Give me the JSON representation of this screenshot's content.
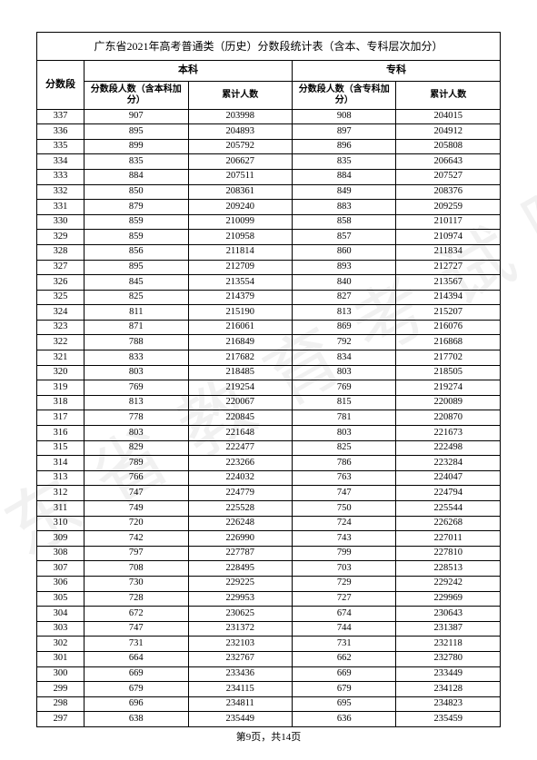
{
  "watermark": "广东省教育考试院",
  "title": "广东省2021年高考普通类（历史）分数段统计表（含本、专科层次加分）",
  "headers": {
    "score": "分数段",
    "undergrad": "本科",
    "vocational": "专科",
    "ug_count": "分数段人数（含本科加分）",
    "ug_cum": "累计人数",
    "voc_count": "分数段人数（含专科加分）",
    "voc_cum": "累计人数"
  },
  "footer": "第9页，共14页",
  "rows": [
    {
      "s": 337,
      "a": 907,
      "b": 203998,
      "c": 908,
      "d": 204015
    },
    {
      "s": 336,
      "a": 895,
      "b": 204893,
      "c": 897,
      "d": 204912
    },
    {
      "s": 335,
      "a": 899,
      "b": 205792,
      "c": 896,
      "d": 205808
    },
    {
      "s": 334,
      "a": 835,
      "b": 206627,
      "c": 835,
      "d": 206643
    },
    {
      "s": 333,
      "a": 884,
      "b": 207511,
      "c": 884,
      "d": 207527
    },
    {
      "s": 332,
      "a": 850,
      "b": 208361,
      "c": 849,
      "d": 208376
    },
    {
      "s": 331,
      "a": 879,
      "b": 209240,
      "c": 883,
      "d": 209259
    },
    {
      "s": 330,
      "a": 859,
      "b": 210099,
      "c": 858,
      "d": 210117
    },
    {
      "s": 329,
      "a": 859,
      "b": 210958,
      "c": 857,
      "d": 210974
    },
    {
      "s": 328,
      "a": 856,
      "b": 211814,
      "c": 860,
      "d": 211834
    },
    {
      "s": 327,
      "a": 895,
      "b": 212709,
      "c": 893,
      "d": 212727
    },
    {
      "s": 326,
      "a": 845,
      "b": 213554,
      "c": 840,
      "d": 213567
    },
    {
      "s": 325,
      "a": 825,
      "b": 214379,
      "c": 827,
      "d": 214394
    },
    {
      "s": 324,
      "a": 811,
      "b": 215190,
      "c": 813,
      "d": 215207
    },
    {
      "s": 323,
      "a": 871,
      "b": 216061,
      "c": 869,
      "d": 216076
    },
    {
      "s": 322,
      "a": 788,
      "b": 216849,
      "c": 792,
      "d": 216868
    },
    {
      "s": 321,
      "a": 833,
      "b": 217682,
      "c": 834,
      "d": 217702
    },
    {
      "s": 320,
      "a": 803,
      "b": 218485,
      "c": 803,
      "d": 218505
    },
    {
      "s": 319,
      "a": 769,
      "b": 219254,
      "c": 769,
      "d": 219274
    },
    {
      "s": 318,
      "a": 813,
      "b": 220067,
      "c": 815,
      "d": 220089
    },
    {
      "s": 317,
      "a": 778,
      "b": 220845,
      "c": 781,
      "d": 220870
    },
    {
      "s": 316,
      "a": 803,
      "b": 221648,
      "c": 803,
      "d": 221673
    },
    {
      "s": 315,
      "a": 829,
      "b": 222477,
      "c": 825,
      "d": 222498
    },
    {
      "s": 314,
      "a": 789,
      "b": 223266,
      "c": 786,
      "d": 223284
    },
    {
      "s": 313,
      "a": 766,
      "b": 224032,
      "c": 763,
      "d": 224047
    },
    {
      "s": 312,
      "a": 747,
      "b": 224779,
      "c": 747,
      "d": 224794
    },
    {
      "s": 311,
      "a": 749,
      "b": 225528,
      "c": 750,
      "d": 225544
    },
    {
      "s": 310,
      "a": 720,
      "b": 226248,
      "c": 724,
      "d": 226268
    },
    {
      "s": 309,
      "a": 742,
      "b": 226990,
      "c": 743,
      "d": 227011
    },
    {
      "s": 308,
      "a": 797,
      "b": 227787,
      "c": 799,
      "d": 227810
    },
    {
      "s": 307,
      "a": 708,
      "b": 228495,
      "c": 703,
      "d": 228513
    },
    {
      "s": 306,
      "a": 730,
      "b": 229225,
      "c": 729,
      "d": 229242
    },
    {
      "s": 305,
      "a": 728,
      "b": 229953,
      "c": 727,
      "d": 229969
    },
    {
      "s": 304,
      "a": 672,
      "b": 230625,
      "c": 674,
      "d": 230643
    },
    {
      "s": 303,
      "a": 747,
      "b": 231372,
      "c": 744,
      "d": 231387
    },
    {
      "s": 302,
      "a": 731,
      "b": 232103,
      "c": 731,
      "d": 232118
    },
    {
      "s": 301,
      "a": 664,
      "b": 232767,
      "c": 662,
      "d": 232780
    },
    {
      "s": 300,
      "a": 669,
      "b": 233436,
      "c": 669,
      "d": 233449
    },
    {
      "s": 299,
      "a": 679,
      "b": 234115,
      "c": 679,
      "d": 234128
    },
    {
      "s": 298,
      "a": 696,
      "b": 234811,
      "c": 695,
      "d": 234823
    },
    {
      "s": 297,
      "a": 638,
      "b": 235449,
      "c": 636,
      "d": 235459
    }
  ]
}
